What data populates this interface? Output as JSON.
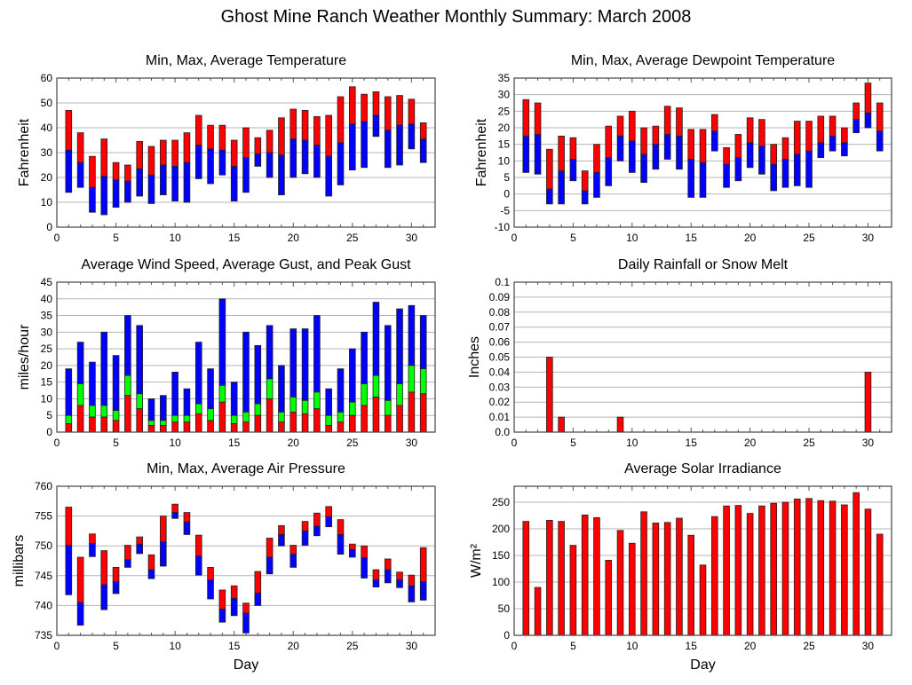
{
  "title": "Ghost Mine Ranch Weather Monthly Summary: March 2008",
  "colors": {
    "red": "#ff0000",
    "blue": "#0000ff",
    "green": "#00ff00",
    "grid": "#b4b4b4"
  },
  "chart_data": [
    {
      "id": "temperature",
      "type": "bar",
      "title": "Min, Max, Average Temperature",
      "xlabel": "",
      "ylabel": "Fahrenheit",
      "xlim": [
        0,
        32
      ],
      "ylim": [
        0,
        60
      ],
      "xticks": [
        0,
        5,
        10,
        15,
        20,
        25,
        30
      ],
      "yticks": [
        0,
        10,
        20,
        30,
        40,
        50,
        60
      ],
      "grid": true,
      "x": [
        1,
        2,
        3,
        4,
        5,
        6,
        7,
        8,
        9,
        10,
        11,
        12,
        13,
        14,
        15,
        16,
        17,
        18,
        19,
        20,
        21,
        22,
        23,
        24,
        25,
        26,
        27,
        28,
        29,
        30,
        31
      ],
      "series": [
        {
          "name": "Min",
          "values": [
            14,
            16,
            6,
            5,
            8,
            10,
            12.5,
            9.5,
            13,
            10.5,
            10,
            19.5,
            17.5,
            21,
            10.5,
            14,
            24.5,
            20,
            13,
            20,
            21.5,
            20,
            12.5,
            17,
            23,
            24,
            36.5,
            24,
            25,
            31.5,
            26
          ]
        },
        {
          "name": "Average",
          "values": [
            31,
            26,
            16,
            20.5,
            19,
            18.5,
            23.5,
            21,
            25,
            24.5,
            26,
            33,
            31.5,
            31,
            24.5,
            28,
            29.5,
            30,
            29,
            35.5,
            35,
            33,
            28.5,
            34,
            41.5,
            42.5,
            45,
            39,
            41,
            41.5,
            35.5
          ]
        },
        {
          "name": "Max",
          "values": [
            47,
            38,
            28.5,
            35.5,
            26,
            25,
            34.5,
            32.5,
            35,
            35,
            38,
            45,
            41,
            41,
            35,
            40,
            36,
            39,
            44,
            47.5,
            47,
            44.5,
            45,
            52.5,
            56.5,
            53.5,
            54.5,
            52.5,
            53,
            51.5,
            42
          ]
        }
      ]
    },
    {
      "id": "dewpoint",
      "type": "bar",
      "title": "Min, Max, Average Dewpoint Temperature",
      "xlabel": "",
      "ylabel": "Fahrenheit",
      "xlim": [
        0,
        32
      ],
      "ylim": [
        -10,
        35
      ],
      "xticks": [
        0,
        5,
        10,
        15,
        20,
        25,
        30
      ],
      "yticks": [
        -10,
        -5,
        0,
        5,
        10,
        15,
        20,
        25,
        30,
        35
      ],
      "grid": true,
      "x": [
        1,
        2,
        3,
        4,
        5,
        6,
        7,
        8,
        9,
        10,
        11,
        12,
        13,
        14,
        15,
        16,
        17,
        18,
        19,
        20,
        21,
        22,
        23,
        24,
        25,
        26,
        27,
        28,
        29,
        30,
        31
      ],
      "series": [
        {
          "name": "Min",
          "values": [
            6.5,
            6,
            -3,
            -3,
            4,
            -3,
            -1,
            2.5,
            10,
            6.5,
            3.5,
            7.5,
            10.5,
            7.5,
            -1,
            -1,
            13,
            2,
            4,
            8,
            6,
            1,
            2,
            2.5,
            2,
            11,
            13,
            11.5,
            18.5,
            20,
            13
          ]
        },
        {
          "name": "Average",
          "values": [
            17.5,
            18,
            1.5,
            7,
            10.5,
            1,
            6.5,
            11,
            17.5,
            16,
            12,
            15,
            18,
            17.5,
            10.5,
            9.5,
            19,
            9,
            11,
            15.5,
            14.5,
            9,
            10.5,
            12,
            13,
            15.5,
            17.5,
            15.5,
            22.5,
            24.5,
            19
          ]
        },
        {
          "name": "Max",
          "values": [
            28.5,
            27.5,
            13.5,
            17.5,
            17,
            7,
            15,
            20.5,
            23.5,
            25,
            20,
            20.5,
            26.5,
            26,
            19.5,
            19.5,
            24,
            14,
            18,
            23,
            22.5,
            15,
            17,
            22,
            22,
            23.5,
            23.5,
            20,
            27.5,
            33.5,
            27.5
          ]
        }
      ]
    },
    {
      "id": "wind",
      "type": "bar",
      "title": "Average Wind Speed, Average Gust, and Peak Gust",
      "xlabel": "",
      "ylabel": "miles/hour",
      "xlim": [
        0,
        32
      ],
      "ylim": [
        0,
        45
      ],
      "xticks": [
        0,
        5,
        10,
        15,
        20,
        25,
        30
      ],
      "yticks": [
        0,
        5,
        10,
        15,
        20,
        25,
        30,
        35,
        40,
        45
      ],
      "grid": true,
      "stacked_overlay": true,
      "x": [
        1,
        2,
        3,
        4,
        5,
        6,
        7,
        8,
        9,
        10,
        11,
        12,
        13,
        14,
        15,
        16,
        17,
        18,
        19,
        20,
        21,
        22,
        23,
        24,
        25,
        26,
        27,
        28,
        29,
        30,
        31
      ],
      "series": [
        {
          "name": "Average Wind Speed",
          "values": [
            2.5,
            8,
            4.5,
            4.5,
            3.5,
            11,
            7,
            2,
            2,
            3,
            3,
            5.5,
            3.5,
            9,
            2.5,
            3,
            5,
            10,
            3,
            6,
            5.5,
            7,
            2,
            3,
            5,
            8,
            10.5,
            5,
            8,
            12,
            11.5
          ]
        },
        {
          "name": "Average Gust",
          "values": [
            5,
            14.5,
            8,
            8,
            6.5,
            17,
            11.5,
            3.5,
            3.5,
            5,
            5,
            8.5,
            7,
            14,
            5,
            6,
            8.5,
            16,
            6,
            10.5,
            9.5,
            12,
            5,
            6,
            9,
            14.5,
            17,
            9.5,
            14.5,
            20,
            19
          ]
        },
        {
          "name": "Peak Gust",
          "values": [
            19,
            27,
            21,
            30,
            23,
            35,
            32,
            10,
            11,
            18,
            13,
            27,
            19,
            40,
            15,
            30,
            26,
            32,
            20,
            31,
            31,
            35,
            13,
            19,
            25,
            30,
            39,
            32,
            37,
            38,
            35
          ]
        }
      ]
    },
    {
      "id": "rainfall",
      "type": "bar",
      "title": "Daily Rainfall or Snow Melt",
      "xlabel": "",
      "ylabel": "Inches",
      "xlim": [
        0,
        32
      ],
      "ylim": [
        0,
        0.1
      ],
      "xticks": [
        0,
        5,
        10,
        15,
        20,
        25,
        30
      ],
      "yticks": [
        "0.0",
        "0.01",
        "0.02",
        "0.03",
        "0.04",
        "0.05",
        "0.06",
        "0.07",
        "0.08",
        "0.09",
        "0.1"
      ],
      "grid": true,
      "x": [
        3,
        4,
        9,
        30
      ],
      "values": [
        0.05,
        0.01,
        0.01,
        0.04
      ]
    },
    {
      "id": "pressure",
      "type": "bar",
      "title": "Min, Max, Average Air Pressure",
      "xlabel": "Day",
      "ylabel": "millibars",
      "xlim": [
        0,
        32
      ],
      "ylim": [
        735,
        760
      ],
      "xticks": [
        0,
        5,
        10,
        15,
        20,
        25,
        30
      ],
      "yticks": [
        735,
        740,
        745,
        750,
        755,
        760
      ],
      "grid": true,
      "x": [
        1,
        2,
        3,
        4,
        5,
        6,
        7,
        8,
        9,
        10,
        11,
        12,
        13,
        14,
        15,
        16,
        17,
        18,
        19,
        20,
        21,
        22,
        23,
        24,
        25,
        26,
        27,
        28,
        29,
        30,
        31
      ],
      "series": [
        {
          "name": "Min",
          "values": [
            741.8,
            736.7,
            748.2,
            739.3,
            742,
            746.4,
            748.7,
            744.5,
            746.6,
            754.6,
            751.9,
            745.1,
            741.1,
            737.2,
            738.3,
            735.4,
            740,
            745.3,
            750,
            746.4,
            750.1,
            751.7,
            753.2,
            748.6,
            748.1,
            744.6,
            743.1,
            743.8,
            743,
            740.6,
            740.9
          ]
        },
        {
          "name": "Average",
          "values": [
            750.1,
            740.5,
            750.4,
            743.5,
            744,
            747.7,
            750.3,
            746,
            750.7,
            755.6,
            754,
            748.3,
            744.3,
            739.4,
            741.2,
            738.7,
            742.1,
            748.1,
            751.9,
            748.6,
            752.5,
            753.3,
            754.9,
            751.9,
            749.4,
            748,
            744.3,
            746,
            744.3,
            743.3,
            744
          ]
        },
        {
          "name": "Max",
          "values": [
            756.5,
            748.1,
            752,
            749.2,
            746.4,
            750.1,
            751.5,
            748.5,
            755,
            757,
            755.6,
            751.8,
            746.4,
            742.6,
            743.3,
            740.4,
            745.7,
            751.3,
            753.4,
            750.1,
            754.1,
            755.5,
            756.6,
            754.4,
            750.3,
            750,
            746,
            747.8,
            745.6,
            745.1,
            749.7
          ]
        }
      ]
    },
    {
      "id": "solar",
      "type": "bar",
      "title": "Average Solar Irradiance",
      "xlabel": "Day",
      "ylabel": "W/m²",
      "xlim": [
        0,
        32
      ],
      "ylim": [
        0,
        280
      ],
      "xticks": [
        0,
        5,
        10,
        15,
        20,
        25,
        30
      ],
      "yticks": [
        0,
        50,
        100,
        150,
        200,
        250
      ],
      "grid": true,
      "x": [
        1,
        2,
        3,
        4,
        5,
        6,
        7,
        8,
        9,
        10,
        11,
        12,
        13,
        14,
        15,
        16,
        17,
        18,
        19,
        20,
        21,
        22,
        23,
        24,
        25,
        26,
        27,
        28,
        29,
        30,
        31
      ],
      "values": [
        214,
        90,
        216,
        214,
        169,
        226,
        221,
        141,
        197,
        173,
        232,
        211,
        212,
        220,
        188,
        132,
        223,
        243,
        244,
        229,
        243,
        248,
        250,
        256,
        257,
        253,
        252,
        245,
        268,
        237,
        190
      ]
    }
  ]
}
